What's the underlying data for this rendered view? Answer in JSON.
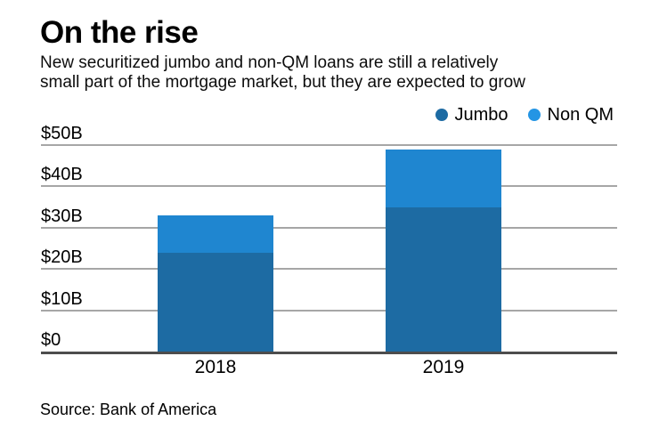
{
  "header": {
    "title": "On the rise",
    "subtitle_line1": "New securitized jumbo and non-QM loans are still a relatively",
    "subtitle_line2": "small part of the mortgage market, but they are expected to grow"
  },
  "legend": {
    "items": [
      {
        "label": "Jumbo",
        "color": "#1d6ba3"
      },
      {
        "label": "Non QM",
        "color": "#2495e4"
      }
    ]
  },
  "chart_data": {
    "type": "bar",
    "stacked": true,
    "title": "On the rise",
    "subtitle": "New securitized jumbo and non-QM loans are still a relatively small part of the mortgage market, but they are expected to grow",
    "categories": [
      "2018",
      "2019"
    ],
    "series": [
      {
        "name": "Jumbo",
        "color": "#1d6ba3",
        "values": [
          24,
          35
        ]
      },
      {
        "name": "Non QM",
        "color": "#1f86d0",
        "values": [
          9,
          14
        ]
      }
    ],
    "totals": [
      33,
      49
    ],
    "xlabel": "",
    "ylabel": "",
    "ylim": [
      0,
      50
    ],
    "yticks": [
      {
        "value": 0,
        "label": "$0"
      },
      {
        "value": 10,
        "label": "$10B"
      },
      {
        "value": 20,
        "label": "$20B"
      },
      {
        "value": 30,
        "label": "$30B"
      },
      {
        "value": 40,
        "label": "$40B"
      },
      {
        "value": 50,
        "label": "$50B"
      }
    ],
    "grid": "horizontal",
    "legend_position": "top-right"
  },
  "footer": {
    "source": "Source: Bank of America"
  }
}
